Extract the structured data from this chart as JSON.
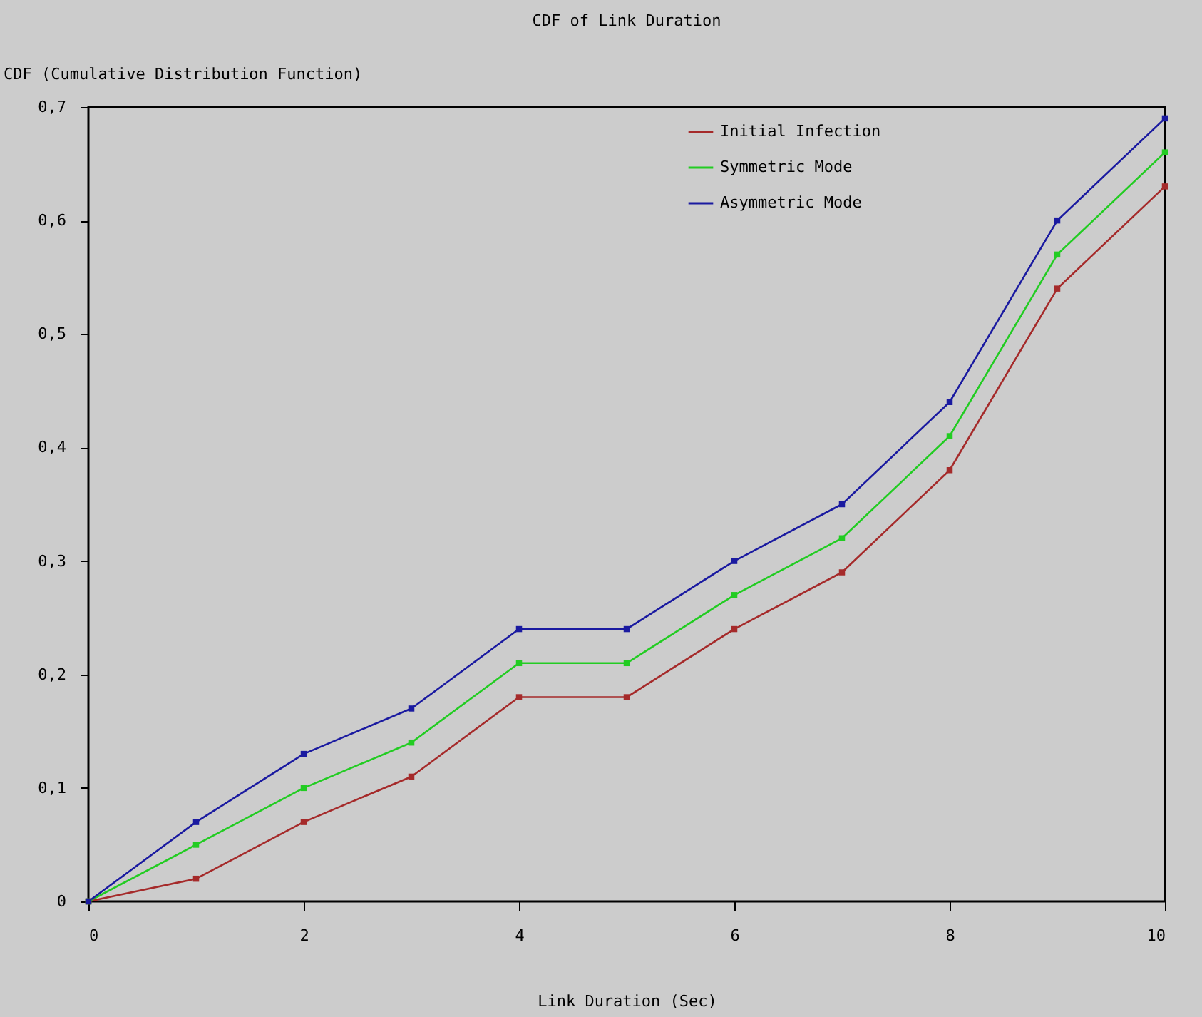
{
  "chart_data": {
    "type": "line",
    "title": "CDF of Link Duration",
    "xlabel": "Link Duration (Sec)",
    "ylabel": "CDF (Cumulative Distribution Function)",
    "x": [
      0,
      1,
      2,
      3,
      4,
      5,
      6,
      7,
      8,
      9,
      10
    ],
    "series": [
      {
        "name": "Initial Infection",
        "color": "#a52a2a",
        "values": [
          0,
          0.02,
          0.07,
          0.11,
          0.18,
          0.18,
          0.24,
          0.29,
          0.38,
          0.54,
          0.63
        ]
      },
      {
        "name": "Symmetric Mode",
        "color": "#22cc22",
        "values": [
          0,
          0.05,
          0.1,
          0.14,
          0.21,
          0.21,
          0.27,
          0.32,
          0.41,
          0.57,
          0.66
        ]
      },
      {
        "name": "Asymmetric Mode",
        "color": "#1a1aa0",
        "values": [
          0,
          0.07,
          0.13,
          0.17,
          0.24,
          0.24,
          0.3,
          0.35,
          0.44,
          0.6,
          0.69
        ]
      }
    ],
    "xlim": [
      0,
      10
    ],
    "xticks": [
      0,
      2,
      4,
      6,
      8,
      10
    ],
    "ylim": [
      0,
      0.7
    ],
    "yticks": [
      0,
      {
        "value": 0.1,
        "label": "0,1"
      },
      {
        "value": 0.2,
        "label": "0,2"
      },
      {
        "value": 0.3,
        "label": "0,3"
      },
      {
        "value": 0.4,
        "label": "0,4"
      },
      {
        "value": 0.5,
        "label": "0,5"
      },
      {
        "value": 0.6,
        "label": "0,6"
      },
      {
        "value": 0.7,
        "label": "0,7"
      }
    ],
    "grid": false,
    "legend": "top right",
    "marker": "square",
    "line_style": "solid"
  }
}
